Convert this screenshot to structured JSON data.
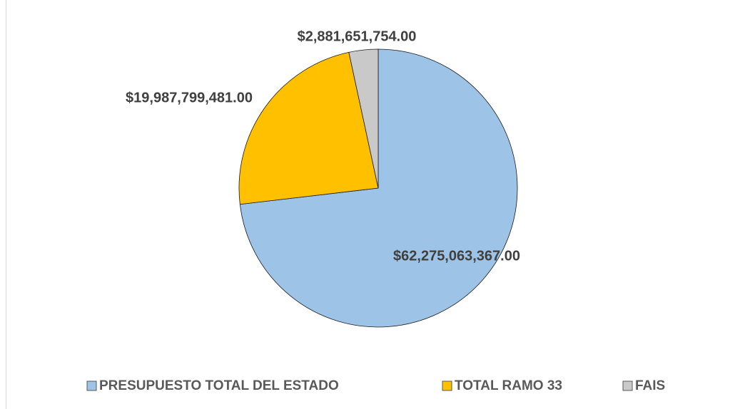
{
  "chart_data": {
    "type": "pie",
    "categories": [
      "PRESUPUESTO TOTAL DEL ESTADO",
      "TOTAL RAMO 33",
      "FAIS"
    ],
    "values": [
      62275063367,
      19987799481,
      2881651754
    ],
    "value_labels": [
      "$62,275,063,367.00",
      "$19,987,799,481.00",
      "$2,881,651,754.00"
    ],
    "colors": [
      "#9DC3E6",
      "#FFC000",
      "#C9C9C9"
    ],
    "legend": "bottom"
  }
}
